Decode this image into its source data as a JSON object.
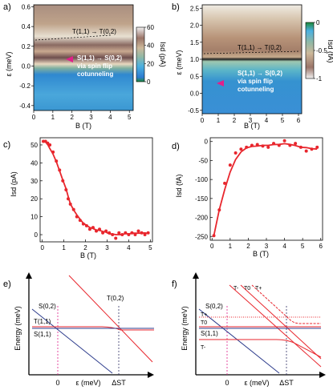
{
  "figure": {
    "panels": {
      "a": {
        "label": "a)",
        "xlabel": "B (T)",
        "ylabel": "ε (meV)",
        "xticks": [
          "0",
          "1",
          "2",
          "3",
          "4",
          "5"
        ],
        "yticks": [
          "0.6",
          "0.4",
          "0.2",
          "0.0",
          "-0.2",
          "-0.4"
        ],
        "cbar_ticks": [
          "60",
          "40",
          "20",
          "0"
        ],
        "cbar_label": "Isd (pA)",
        "ann1": "T(1,1) → T(0,2)",
        "ann2_l1": "S(1,1) → S(0,2)",
        "ann2_l2": "via spin flip",
        "ann2_l3": "cotunneling"
      },
      "b": {
        "label": "b)",
        "xlabel": "B (T)",
        "ylabel": "ε (meV)",
        "xticks": [
          "0",
          "1",
          "2",
          "3",
          "4",
          "5",
          "6"
        ],
        "yticks": [
          "2.5",
          "2.0",
          "1.5",
          "1.0",
          "0.5",
          "0.0",
          "-0.5"
        ],
        "cbar_ticks": [
          "0",
          "-0.5",
          "-1"
        ],
        "cbar_label": "Isd (fA)",
        "ann1": "T(1,1) → T(0,2)",
        "ann2_l1": "S(1,1) → S(0,2)",
        "ann2_l2": "via spin flip",
        "ann2_l3": "cotunneling"
      },
      "c": {
        "label": "c)",
        "xlabel": "B (T)",
        "ylabel": "Isd (pA)",
        "xticks": [
          "0",
          "1",
          "2",
          "3",
          "4",
          "5"
        ],
        "yticks": [
          "50",
          "40",
          "30",
          "20",
          "10",
          "0"
        ]
      },
      "d": {
        "label": "d)",
        "xlabel": "B (T)",
        "ylabel": "Isd (fA)",
        "xticks": [
          "0",
          "1",
          "2",
          "3",
          "4",
          "5",
          "6"
        ],
        "yticks": [
          "0",
          "-50",
          "-100",
          "-150",
          "-200",
          "-250"
        ]
      },
      "e": {
        "label": "e)",
        "ylabel": "Energy (meV)",
        "xlabel": "ε (meV)",
        "zero": "0",
        "delta": "ΔST",
        "s02": "S(0,2)",
        "t02": "T(0,2)",
        "t11": "T(1,1)",
        "s11": "S(1,1)"
      },
      "f": {
        "label": "f)",
        "ylabel": "Energy (meV)",
        "xlabel": "ε (meV)",
        "zero": "0",
        "delta": "ΔST",
        "s02": "S(0,2)",
        "s11": "S(1,1)",
        "tm": "T-",
        "t0": "T0",
        "tp": "T+",
        "tp_l": "T+",
        "t0_l": "T0",
        "tm_l": "T-"
      }
    }
  },
  "chart_data": [
    {
      "type": "heatmap",
      "panel": "a",
      "xlabel": "B (T)",
      "ylabel": "ε (meV)",
      "xlim": [
        0,
        5.2
      ],
      "ylim": [
        -0.45,
        0.62
      ],
      "colorbar_range": [
        0,
        60
      ],
      "colorbar_label": "Isd (pA)"
    },
    {
      "type": "heatmap",
      "panel": "b",
      "xlabel": "B (T)",
      "ylabel": "ε (meV)",
      "xlim": [
        0,
        6.2
      ],
      "ylim": [
        -0.6,
        2.6
      ],
      "colorbar_range": [
        -1,
        0
      ],
      "colorbar_label": "Isd (fA)"
    },
    {
      "type": "scatter",
      "panel": "c",
      "xlabel": "B (T)",
      "ylabel": "Isd (pA)",
      "xlim": [
        -0.1,
        5.1
      ],
      "ylim": [
        -4,
        54
      ],
      "x": [
        0.05,
        0.15,
        0.25,
        0.35,
        0.5,
        0.65,
        0.8,
        0.95,
        1.1,
        1.2,
        1.3,
        1.45,
        1.6,
        1.75,
        1.9,
        2.05,
        2.2,
        2.35,
        2.5,
        2.65,
        2.8,
        2.95,
        3.1,
        3.25,
        3.4,
        3.55,
        3.7,
        3.85,
        4.0,
        4.15,
        4.3,
        4.45,
        4.6,
        4.75,
        4.9
      ],
      "y": [
        52,
        52,
        51,
        50,
        46,
        41,
        36,
        30,
        25,
        20,
        17,
        14,
        10,
        8,
        6,
        5,
        3,
        4,
        2,
        3,
        1,
        2,
        1,
        0,
        -2,
        1,
        0,
        1,
        0,
        1,
        0,
        2,
        1,
        0,
        1
      ],
      "fit": "line"
    },
    {
      "type": "scatter",
      "panel": "d",
      "xlabel": "B (T)",
      "ylabel": "Isd (fA)",
      "xlim": [
        -0.1,
        6.1
      ],
      "ylim": [
        -260,
        10
      ],
      "x": [
        0.1,
        0.4,
        0.7,
        1.0,
        1.3,
        1.6,
        1.9,
        2.2,
        2.5,
        2.8,
        3.1,
        3.4,
        3.7,
        4.0,
        4.3,
        4.6,
        4.9,
        5.2,
        5.5,
        5.8
      ],
      "y": [
        -248,
        -180,
        -110,
        -62,
        -30,
        -20,
        -15,
        -10,
        -8,
        -12,
        -15,
        -5,
        -10,
        2,
        -10,
        -5,
        -15,
        -25,
        -20,
        -15
      ],
      "fit": "line"
    }
  ],
  "colors": {
    "axis": "#000000",
    "red": "#e8262d",
    "blue": "#2d3c8c",
    "magenta": "#e0208a",
    "dashed": "#333366"
  }
}
